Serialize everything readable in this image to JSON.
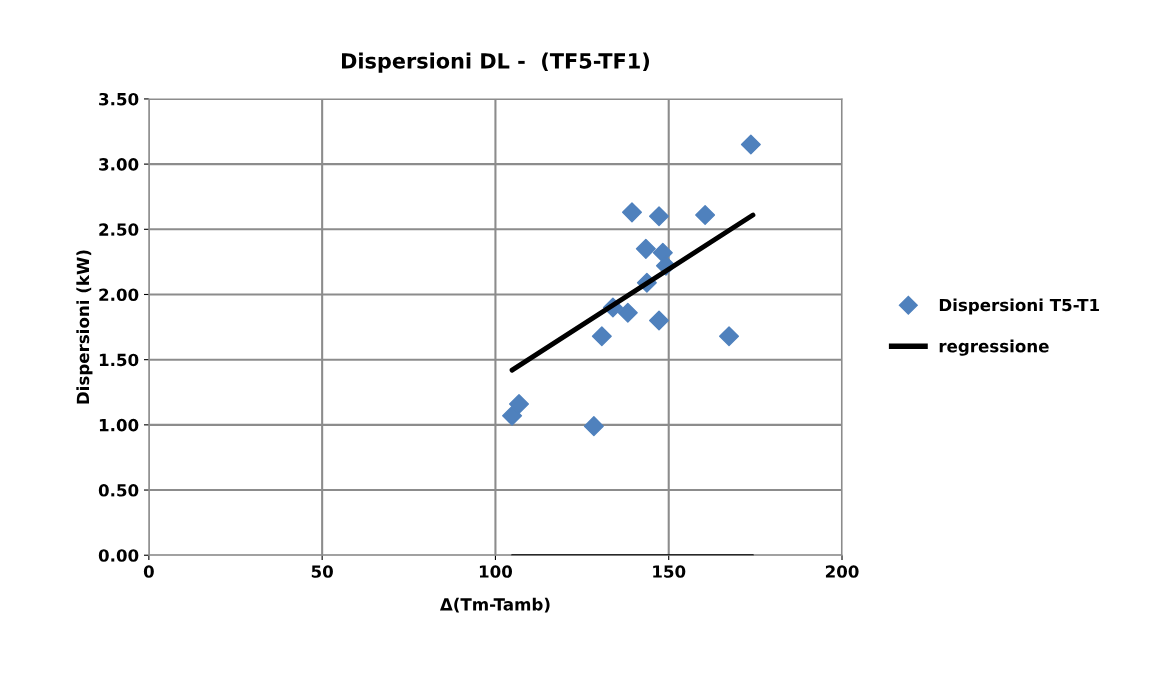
{
  "chart_data": {
    "type": "scatter",
    "title": "Dispersioni DL -  (TF5-TF1)",
    "xlabel": "Δ(Tm-Tamb)",
    "ylabel": "Dispersioni (kW)",
    "xlim": [
      0,
      200
    ],
    "xticks": [
      0,
      50,
      100,
      150,
      200
    ],
    "ylim": [
      0,
      3.5
    ],
    "yticks": [
      {
        "value": 0,
        "label": "0.00"
      },
      {
        "value": 0.5,
        "label": "0.50"
      },
      {
        "value": 1,
        "label": "1.00"
      },
      {
        "value": 1.5,
        "label": "1.50"
      },
      {
        "value": 2,
        "label": "2.00"
      },
      {
        "value": 2.5,
        "label": "2.50"
      },
      {
        "value": 3,
        "label": "3.00"
      },
      {
        "value": 3.5,
        "label": "3.50"
      }
    ],
    "grid": true,
    "legend": "right",
    "series": [
      {
        "name": "Dispersioni T5-T1",
        "marker": "diamond",
        "color": "#4f81bd",
        "x": [
          104.8,
          106.8,
          128.4,
          130.7,
          133.9,
          138.2,
          143.7,
          143.4,
          139.4,
          147.2,
          148.3,
          149.2,
          147.2,
          160.5,
          167.4,
          173.7
        ],
        "values": [
          1.07,
          1.16,
          0.99,
          1.68,
          1.9,
          1.86,
          2.09,
          2.35,
          2.63,
          2.6,
          2.32,
          2.22,
          1.8,
          2.61,
          1.68,
          3.15
        ]
      },
      {
        "name": "regressione",
        "type": "line",
        "marker": "none",
        "color": "#000000",
        "x": [
          104.8,
          174.3
        ],
        "values": [
          1.42,
          2.61
        ]
      },
      {
        "type": "line",
        "marker": "none",
        "color": "#000000",
        "x": [
          104.8,
          174.3
        ],
        "values": [
          0,
          0
        ]
      }
    ]
  }
}
